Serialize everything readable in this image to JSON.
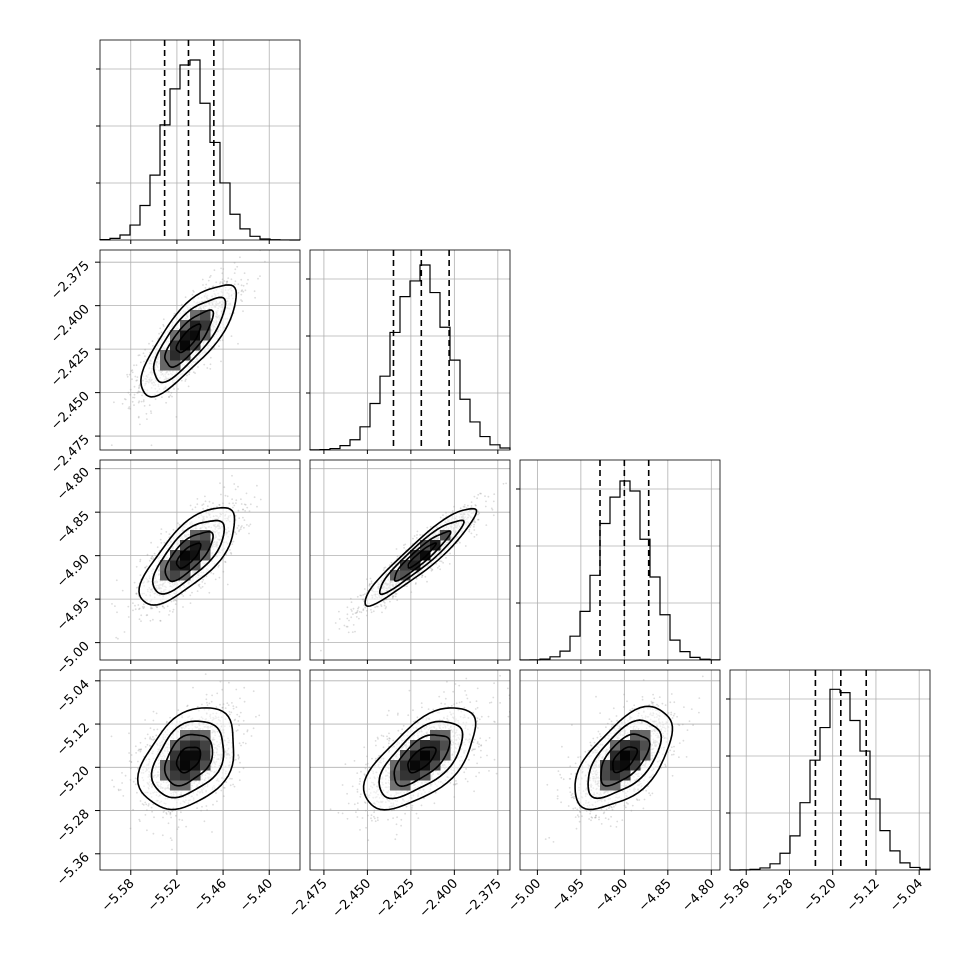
{
  "chart_data": {
    "type": "corner",
    "grid": true,
    "parameters": [
      {
        "ticks": [
          -5.58,
          -5.52,
          -5.46,
          -5.4
        ],
        "tick_labels": [
          "−5.58",
          "−5.52",
          "−5.46",
          "−5.40"
        ],
        "range": [
          -5.62,
          -5.36
        ],
        "mean": -5.505,
        "sigma": 0.031,
        "quantiles": [
          -5.536,
          -5.505,
          -5.472
        ],
        "hist_peak_bin": -5.51
      },
      {
        "ticks": [
          -2.475,
          -2.45,
          -2.425,
          -2.4,
          -2.375
        ],
        "tick_labels": [
          "−2.475",
          "−2.450",
          "−2.425",
          "−2.400",
          "−2.375"
        ],
        "range": [
          -2.483,
          -2.368
        ],
        "mean": -2.419,
        "sigma": 0.016,
        "quantiles": [
          -2.435,
          -2.419,
          -2.403
        ],
        "hist_peak_bin": -2.42
      },
      {
        "ticks": [
          -5.0,
          -4.95,
          -4.9,
          -4.85,
          -4.8
        ],
        "tick_labels": [
          "−5.00",
          "−4.95",
          "−4.90",
          "−4.85",
          "−4.80"
        ],
        "range": [
          -5.02,
          -4.79
        ],
        "mean": -4.9,
        "sigma": 0.028,
        "quantiles": [
          -4.928,
          -4.9,
          -4.872
        ],
        "hist_peak_bin": -4.9
      },
      {
        "ticks": [
          -5.36,
          -5.28,
          -5.2,
          -5.12,
          -5.04
        ],
        "tick_labels": [
          "−5.36",
          "−5.28",
          "−5.20",
          "−5.12",
          "−5.04"
        ],
        "range": [
          -5.39,
          -5.02
        ],
        "mean": -5.185,
        "sigma": 0.047,
        "quantiles": [
          -5.232,
          -5.185,
          -5.138
        ],
        "hist_peak_bin": -5.19
      }
    ],
    "correlations": [
      {
        "pair": [
          0,
          1
        ],
        "rho": 0.78
      },
      {
        "pair": [
          0,
          2
        ],
        "rho": 0.72
      },
      {
        "pair": [
          1,
          2
        ],
        "rho": 0.93
      },
      {
        "pair": [
          0,
          3
        ],
        "rho": 0.35
      },
      {
        "pair": [
          1,
          3
        ],
        "rho": 0.62
      },
      {
        "pair": [
          2,
          3
        ],
        "rho": 0.58
      }
    ],
    "contour_levels_sigma": [
      0.5,
      1.0,
      1.5,
      2.0
    ],
    "colors": {
      "line": "#000000",
      "grid": "#b0b0b0",
      "points": "#9a9a9a"
    }
  }
}
